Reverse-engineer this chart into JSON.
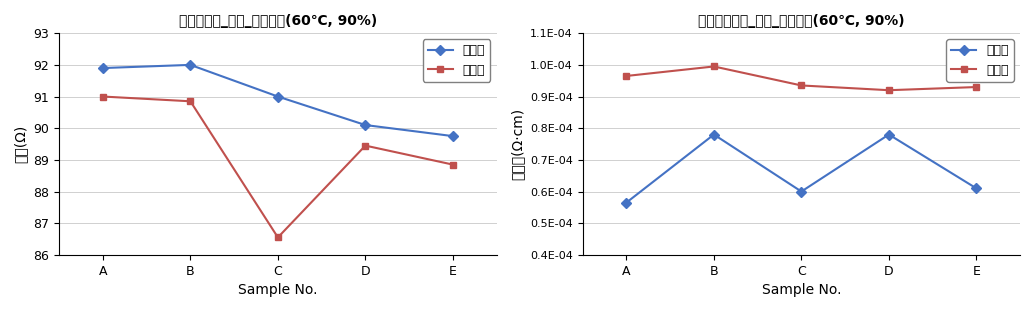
{
  "chart1": {
    "title": "저항균일도_완품_항온항습(60℃, 90%)",
    "xlabel": "Sample No.",
    "ylabel": "저항(Ω)",
    "categories": [
      "A",
      "B",
      "C",
      "D",
      "E"
    ],
    "series_before": [
      91.9,
      92.0,
      91.0,
      90.1,
      89.75
    ],
    "series_after": [
      91.0,
      90.85,
      86.55,
      89.45,
      88.85
    ],
    "color_before": "#4472C4",
    "color_after": "#C0504D",
    "legend_before": "시험전",
    "legend_after": "시험후",
    "ylim": [
      86,
      93
    ],
    "yticks": [
      86,
      87,
      88,
      89,
      90,
      91,
      92,
      93
    ]
  },
  "chart2": {
    "title": "비저항균일도_완품_항온항습(60℃, 90%)",
    "xlabel": "Sample No.",
    "ylabel": "비저항(Ω·cm)",
    "categories": [
      "A",
      "B",
      "C",
      "D",
      "E"
    ],
    "series_before": [
      5.65e-05,
      7.8e-05,
      6e-05,
      7.8e-05,
      6.1e-05
    ],
    "series_after": [
      9.65e-05,
      9.95e-05,
      9.35e-05,
      9.2e-05,
      9.3e-05
    ],
    "color_before": "#4472C4",
    "color_after": "#C0504D",
    "legend_before": "시험전",
    "legend_after": "시험후",
    "ylim": [
      4e-05,
      0.00011
    ],
    "yticks": [
      4e-05,
      5e-05,
      6e-05,
      7e-05,
      8e-05,
      9e-05,
      0.0001,
      0.00011
    ]
  }
}
